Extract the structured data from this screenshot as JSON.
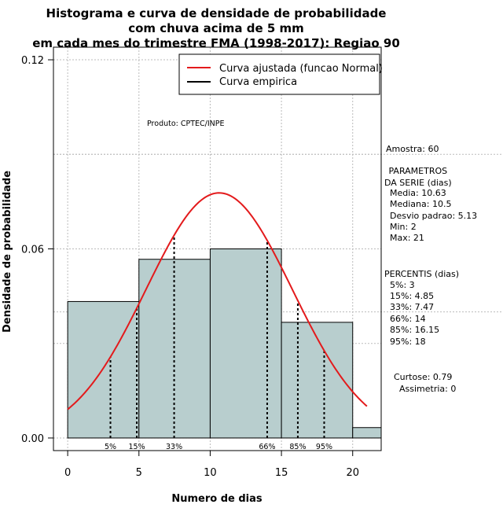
{
  "chart_data": {
    "type": "histogram",
    "title_lines": [
      "Histograma e curva de densidade de probabilidade",
      "com chuva acima de 5 mm",
      "em cada mes do trimestre FMA (1998-2017): Regiao 90"
    ],
    "xlabel": "Numero de dias",
    "ylabel": "Densidade de probabilidade",
    "xlim": [
      -1,
      22
    ],
    "ylim": [
      -0.004,
      0.124
    ],
    "x_ticks": [
      0,
      5,
      10,
      15,
      20
    ],
    "y_ticks": [
      0.0,
      0.06,
      0.12
    ],
    "y_tick_labels": [
      "0.00",
      "0.06",
      "0.12"
    ],
    "bins": [
      {
        "start": 0,
        "end": 5,
        "density": 0.0433
      },
      {
        "start": 5,
        "end": 10,
        "density": 0.0567
      },
      {
        "start": 10,
        "end": 15,
        "density": 0.06
      },
      {
        "start": 15,
        "end": 20,
        "density": 0.0367
      },
      {
        "start": 20,
        "end": 22,
        "density": 0.0033
      }
    ],
    "fill_color": "#b8cece",
    "curve_color": "#e31a1c",
    "normal_fit": {
      "mean": 10.63,
      "sd": 5.13,
      "x_range": [
        0,
        21
      ]
    },
    "percentile_lines": [
      {
        "label": "5%",
        "x": 3
      },
      {
        "label": "15%",
        "x": 4.85
      },
      {
        "label": "33%",
        "x": 7.47
      },
      {
        "label": "66%",
        "x": 14
      },
      {
        "label": "85%",
        "x": 16.15
      },
      {
        "label": "95%",
        "x": 18
      }
    ],
    "legend": {
      "position": "top-right",
      "entries": [
        {
          "label": "Curva ajustada (funcao Normal)",
          "color": "#e31a1c"
        },
        {
          "label": "Curva empirica",
          "color": "#000000"
        }
      ]
    },
    "produto": "Produto: CPTEC/INPE",
    "stats_text": [
      "Amostra: 60",
      " PARAMETROS",
      "DA SERIE (dias)",
      "  Media: 10.63",
      "  Mediana: 10.5",
      "  Desvio padrao: 5.13",
      "  Min: 2",
      "  Max: 21",
      "PERCENTIS (dias)",
      "  5%: 3",
      "  15%: 4.85",
      "  33%: 7.47",
      "  66%: 14",
      "  85%: 16.15",
      "  95%: 18",
      "Curtose: 0.79",
      "  Assimetria: 0"
    ]
  }
}
